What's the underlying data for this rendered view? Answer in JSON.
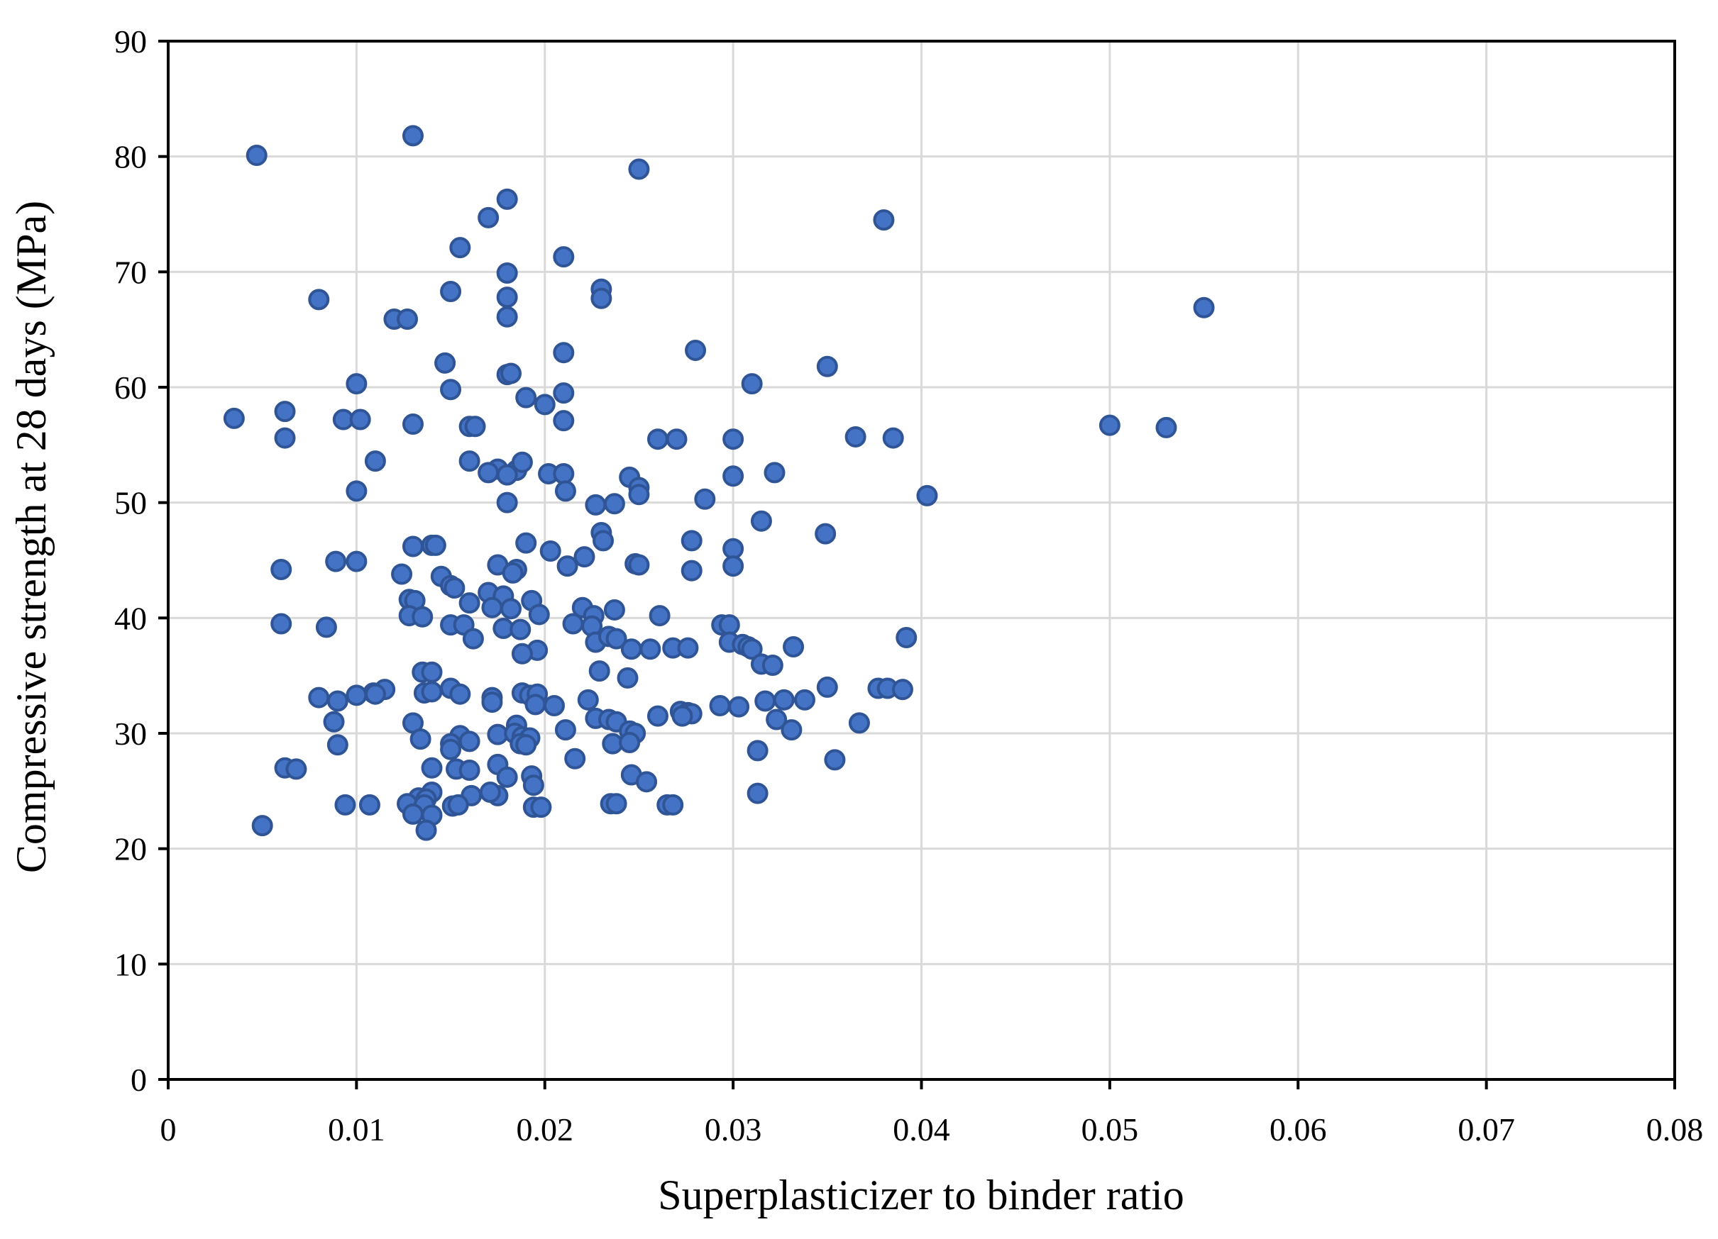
{
  "chart_data": {
    "type": "scatter",
    "xlabel": "Superplasticizer to binder ratio",
    "ylabel": "Compressive strength at 28 days (MPa)",
    "xlim": [
      0,
      0.08
    ],
    "ylim": [
      0,
      90
    ],
    "xticks": [
      0,
      0.01,
      0.02,
      0.03,
      0.04,
      0.05,
      0.06,
      0.07,
      0.08
    ],
    "xtick_labels": [
      "0",
      "0.01",
      "0.02",
      "0.03",
      "0.04",
      "0.05",
      "0.06",
      "0.07",
      "0.08"
    ],
    "yticks": [
      0,
      10,
      20,
      30,
      40,
      50,
      60,
      70,
      80,
      90
    ],
    "ytick_labels": [
      "0",
      "10",
      "20",
      "30",
      "40",
      "50",
      "60",
      "70",
      "80",
      "90"
    ],
    "grid": true,
    "marker_color": "#4472C4",
    "marker_edge_color": "#2F5597",
    "series": [
      {
        "points": [
          [
            0.0047,
            80.1
          ],
          [
            0.013,
            81.8
          ],
          [
            0.025,
            78.9
          ],
          [
            0.018,
            76.3
          ],
          [
            0.017,
            74.7
          ],
          [
            0.038,
            74.5
          ],
          [
            0.0155,
            72.1
          ],
          [
            0.021,
            71.3
          ],
          [
            0.018,
            69.9
          ],
          [
            0.023,
            68.5
          ],
          [
            0.015,
            68.3
          ],
          [
            0.018,
            67.8
          ],
          [
            0.008,
            67.6
          ],
          [
            0.023,
            67.7
          ],
          [
            0.055,
            66.9
          ],
          [
            0.018,
            66.1
          ],
          [
            0.012,
            65.9
          ],
          [
            0.0127,
            65.9
          ],
          [
            0.021,
            63.0
          ],
          [
            0.028,
            63.2
          ],
          [
            0.0147,
            62.1
          ],
          [
            0.035,
            61.8
          ],
          [
            0.018,
            61.1
          ],
          [
            0.0182,
            61.2
          ],
          [
            0.01,
            60.3
          ],
          [
            0.031,
            60.3
          ],
          [
            0.015,
            59.8
          ],
          [
            0.019,
            59.1
          ],
          [
            0.021,
            59.5
          ],
          [
            0.02,
            58.5
          ],
          [
            0.0062,
            57.9
          ],
          [
            0.0035,
            57.3
          ],
          [
            0.0093,
            57.2
          ],
          [
            0.0102,
            57.2
          ],
          [
            0.013,
            56.8
          ],
          [
            0.016,
            56.6
          ],
          [
            0.0163,
            56.6
          ],
          [
            0.021,
            57.1
          ],
          [
            0.05,
            56.7
          ],
          [
            0.053,
            56.5
          ],
          [
            0.0062,
            55.6
          ],
          [
            0.026,
            55.5
          ],
          [
            0.027,
            55.5
          ],
          [
            0.03,
            55.5
          ],
          [
            0.0365,
            55.7
          ],
          [
            0.0385,
            55.6
          ],
          [
            0.011,
            53.6
          ],
          [
            0.016,
            53.6
          ],
          [
            0.0175,
            52.9
          ],
          [
            0.0185,
            52.8
          ],
          [
            0.0188,
            53.5
          ],
          [
            0.017,
            52.6
          ],
          [
            0.018,
            52.4
          ],
          [
            0.0202,
            52.5
          ],
          [
            0.021,
            52.5
          ],
          [
            0.0245,
            52.2
          ],
          [
            0.025,
            51.3
          ],
          [
            0.03,
            52.3
          ],
          [
            0.0322,
            52.6
          ],
          [
            0.01,
            51.0
          ],
          [
            0.0211,
            51.0
          ],
          [
            0.025,
            50.7
          ],
          [
            0.0403,
            50.6
          ],
          [
            0.0285,
            50.3
          ],
          [
            0.018,
            50.0
          ],
          [
            0.0227,
            49.8
          ],
          [
            0.0237,
            49.9
          ],
          [
            0.0315,
            48.4
          ],
          [
            0.023,
            47.4
          ],
          [
            0.0231,
            46.7
          ],
          [
            0.0349,
            47.3
          ],
          [
            0.0278,
            46.7
          ],
          [
            0.013,
            46.2
          ],
          [
            0.014,
            46.3
          ],
          [
            0.0142,
            46.3
          ],
          [
            0.019,
            46.5
          ],
          [
            0.0203,
            45.8
          ],
          [
            0.0221,
            45.3
          ],
          [
            0.03,
            46.0
          ],
          [
            0.0089,
            44.9
          ],
          [
            0.01,
            44.9
          ],
          [
            0.006,
            44.2
          ],
          [
            0.0175,
            44.6
          ],
          [
            0.0185,
            44.2
          ],
          [
            0.0212,
            44.5
          ],
          [
            0.0248,
            44.7
          ],
          [
            0.025,
            44.6
          ],
          [
            0.0278,
            44.1
          ],
          [
            0.03,
            44.5
          ],
          [
            0.0124,
            43.8
          ],
          [
            0.0145,
            43.6
          ],
          [
            0.0183,
            43.9
          ],
          [
            0.015,
            42.8
          ],
          [
            0.0152,
            42.6
          ],
          [
            0.017,
            42.2
          ],
          [
            0.0128,
            41.6
          ],
          [
            0.0131,
            41.5
          ],
          [
            0.016,
            41.3
          ],
          [
            0.0178,
            41.9
          ],
          [
            0.0193,
            41.5
          ],
          [
            0.0172,
            40.9
          ],
          [
            0.0182,
            40.8
          ],
          [
            0.022,
            40.9
          ],
          [
            0.0237,
            40.7
          ],
          [
            0.0197,
            40.3
          ],
          [
            0.0226,
            40.2
          ],
          [
            0.0261,
            40.2
          ],
          [
            0.0128,
            40.2
          ],
          [
            0.0135,
            40.1
          ],
          [
            0.006,
            39.5
          ],
          [
            0.0084,
            39.2
          ],
          [
            0.015,
            39.4
          ],
          [
            0.0157,
            39.4
          ],
          [
            0.0178,
            39.1
          ],
          [
            0.0187,
            39.0
          ],
          [
            0.0215,
            39.5
          ],
          [
            0.0225,
            39.3
          ],
          [
            0.0294,
            39.4
          ],
          [
            0.0298,
            39.4
          ],
          [
            0.0162,
            38.2
          ],
          [
            0.0227,
            37.9
          ],
          [
            0.0234,
            38.4
          ],
          [
            0.0238,
            38.2
          ],
          [
            0.0298,
            37.9
          ],
          [
            0.0305,
            37.7
          ],
          [
            0.0308,
            37.5
          ],
          [
            0.031,
            37.3
          ],
          [
            0.0196,
            37.2
          ],
          [
            0.0246,
            37.3
          ],
          [
            0.0256,
            37.3
          ],
          [
            0.0268,
            37.4
          ],
          [
            0.0276,
            37.4
          ],
          [
            0.0332,
            37.5
          ],
          [
            0.0392,
            38.3
          ],
          [
            0.0188,
            36.9
          ],
          [
            0.0315,
            36.0
          ],
          [
            0.0321,
            35.9
          ],
          [
            0.0135,
            35.3
          ],
          [
            0.014,
            35.3
          ],
          [
            0.0229,
            35.4
          ],
          [
            0.0244,
            34.8
          ],
          [
            0.0115,
            33.8
          ],
          [
            0.0109,
            33.5
          ],
          [
            0.011,
            33.4
          ],
          [
            0.01,
            33.3
          ],
          [
            0.008,
            33.1
          ],
          [
            0.0136,
            33.5
          ],
          [
            0.014,
            33.6
          ],
          [
            0.015,
            33.9
          ],
          [
            0.0155,
            33.4
          ],
          [
            0.0172,
            33.1
          ],
          [
            0.0188,
            33.5
          ],
          [
            0.0192,
            33.3
          ],
          [
            0.0196,
            33.4
          ],
          [
            0.035,
            34.0
          ],
          [
            0.0377,
            33.9
          ],
          [
            0.0382,
            33.9
          ],
          [
            0.039,
            33.8
          ],
          [
            0.009,
            32.8
          ],
          [
            0.0172,
            32.7
          ],
          [
            0.0195,
            32.5
          ],
          [
            0.0205,
            32.4
          ],
          [
            0.0223,
            32.9
          ],
          [
            0.0293,
            32.4
          ],
          [
            0.0303,
            32.3
          ],
          [
            0.0317,
            32.8
          ],
          [
            0.0327,
            32.9
          ],
          [
            0.0338,
            32.9
          ],
          [
            0.0272,
            31.9
          ],
          [
            0.0276,
            31.8
          ],
          [
            0.0278,
            31.7
          ],
          [
            0.026,
            31.5
          ],
          [
            0.0273,
            31.5
          ],
          [
            0.0227,
            31.3
          ],
          [
            0.0234,
            31.2
          ],
          [
            0.0238,
            31.0
          ],
          [
            0.0323,
            31.2
          ],
          [
            0.0088,
            31.0
          ],
          [
            0.013,
            30.9
          ],
          [
            0.0185,
            30.7
          ],
          [
            0.0211,
            30.3
          ],
          [
            0.0245,
            30.2
          ],
          [
            0.0248,
            30.0
          ],
          [
            0.0331,
            30.3
          ],
          [
            0.0367,
            30.9
          ],
          [
            0.0155,
            29.8
          ],
          [
            0.0175,
            29.9
          ],
          [
            0.0184,
            30.0
          ],
          [
            0.0188,
            29.7
          ],
          [
            0.0192,
            29.6
          ],
          [
            0.0134,
            29.5
          ],
          [
            0.015,
            29.1
          ],
          [
            0.016,
            29.3
          ],
          [
            0.0187,
            29.1
          ],
          [
            0.019,
            29.0
          ],
          [
            0.009,
            29.0
          ],
          [
            0.0236,
            29.1
          ],
          [
            0.0245,
            29.2
          ],
          [
            0.015,
            28.6
          ],
          [
            0.0313,
            28.5
          ],
          [
            0.0354,
            27.7
          ],
          [
            0.0216,
            27.8
          ],
          [
            0.0175,
            27.3
          ],
          [
            0.0062,
            27.0
          ],
          [
            0.0068,
            26.9
          ],
          [
            0.014,
            27.0
          ],
          [
            0.0153,
            26.9
          ],
          [
            0.016,
            26.8
          ],
          [
            0.018,
            26.2
          ],
          [
            0.0193,
            26.3
          ],
          [
            0.0246,
            26.4
          ],
          [
            0.0254,
            25.8
          ],
          [
            0.0194,
            25.5
          ],
          [
            0.0161,
            24.6
          ],
          [
            0.0175,
            24.6
          ],
          [
            0.0171,
            24.9
          ],
          [
            0.014,
            24.9
          ],
          [
            0.0133,
            24.4
          ],
          [
            0.0137,
            24.3
          ],
          [
            0.0313,
            24.8
          ],
          [
            0.0094,
            23.8
          ],
          [
            0.0107,
            23.8
          ],
          [
            0.0127,
            23.9
          ],
          [
            0.0136,
            23.8
          ],
          [
            0.0151,
            23.7
          ],
          [
            0.0154,
            23.8
          ],
          [
            0.0194,
            23.6
          ],
          [
            0.0198,
            23.6
          ],
          [
            0.0235,
            23.9
          ],
          [
            0.0238,
            23.9
          ],
          [
            0.0265,
            23.8
          ],
          [
            0.0268,
            23.8
          ],
          [
            0.013,
            23.0
          ],
          [
            0.014,
            22.9
          ],
          [
            0.005,
            22.0
          ],
          [
            0.0137,
            21.6
          ]
        ]
      }
    ]
  }
}
